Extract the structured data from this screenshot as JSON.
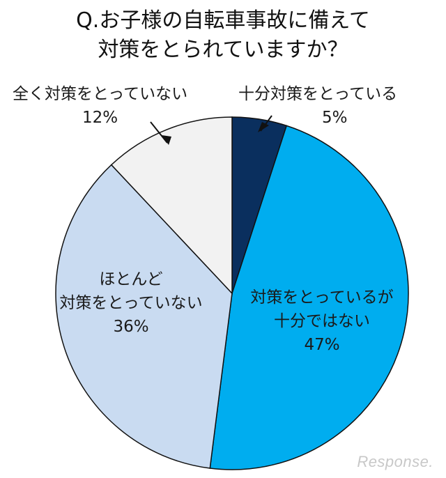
{
  "chart_data": {
    "type": "pie",
    "title_lines": [
      "Q.お子様の自転車事故に備えて",
      "対策をとられていますか？"
    ],
    "slices": [
      {
        "label": "十分対策をとっている",
        "value": 5,
        "pct": "5%",
        "color": "#0a2f5e"
      },
      {
        "label": "対策をとっているが十分ではない",
        "value": 47,
        "pct": "47%",
        "color": "#00adef"
      },
      {
        "label": "ほとんど対策をとっていない",
        "value": 36,
        "pct": "36%",
        "color": "#c9dbf1"
      },
      {
        "label": "全く対策をとっていない",
        "value": 12,
        "pct": "12%",
        "color": "#f2f2f2"
      }
    ]
  },
  "labels": {
    "slice0": {
      "line1": "十分対策をとっている",
      "pct": "5%"
    },
    "slice1": {
      "line1": "対策をとっているが",
      "line2": "十分ではない",
      "pct": "47%"
    },
    "slice2": {
      "line1": "ほとんど",
      "line2": "対策をとっていない",
      "pct": "36%"
    },
    "slice3": {
      "line1": "全く対策をとっていない",
      "pct": "12%"
    }
  },
  "watermark": "Response."
}
